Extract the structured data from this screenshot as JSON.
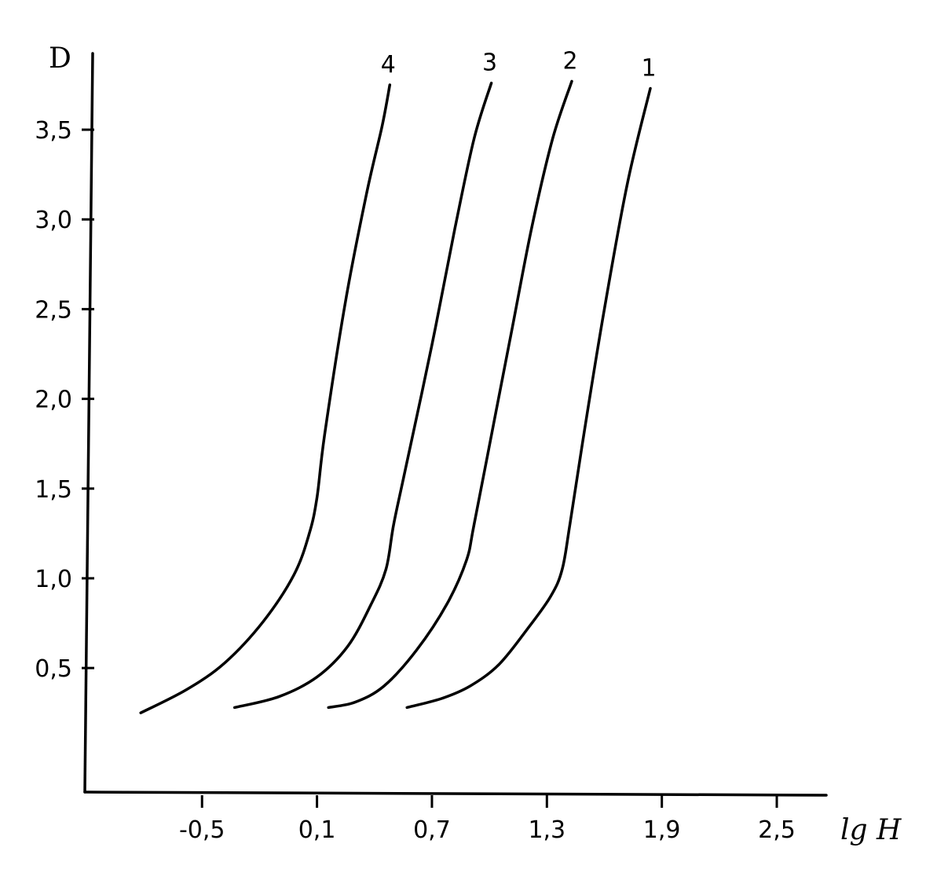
{
  "chart_data": {
    "type": "line",
    "xlabel": "lg H",
    "ylabel": "D",
    "xlim": [
      -1.12,
      2.75
    ],
    "ylim": [
      -0.2,
      3.96
    ],
    "x_ticks": [
      {
        "value": -0.5,
        "label": "-0,5"
      },
      {
        "value": 0.1,
        "label": "0,1"
      },
      {
        "value": 0.7,
        "label": "0,7"
      },
      {
        "value": 1.3,
        "label": "1,3"
      },
      {
        "value": 1.9,
        "label": "1,9"
      },
      {
        "value": 2.5,
        "label": "2,5"
      }
    ],
    "y_ticks": [
      {
        "value": 0.5,
        "label": "0,5"
      },
      {
        "value": 1.0,
        "label": "1,0"
      },
      {
        "value": 1.5,
        "label": "1,5"
      },
      {
        "value": 2.0,
        "label": "2,0"
      },
      {
        "value": 2.5,
        "label": "2,5"
      },
      {
        "value": 3.0,
        "label": "3,0"
      },
      {
        "value": 3.5,
        "label": "3,5"
      }
    ],
    "grid": false,
    "legend": "none",
    "series": [
      {
        "name": "1",
        "x": [
          0.57,
          0.75,
          0.9,
          1.05,
          1.2,
          1.32,
          1.38,
          1.42,
          1.5,
          1.6,
          1.72,
          1.84
        ],
        "y": [
          0.28,
          0.33,
          0.4,
          0.52,
          0.72,
          0.9,
          1.05,
          1.3,
          1.85,
          2.5,
          3.2,
          3.73
        ]
      },
      {
        "name": "2",
        "x": [
          0.16,
          0.3,
          0.45,
          0.62,
          0.78,
          0.88,
          0.92,
          1.02,
          1.12,
          1.22,
          1.33,
          1.43
        ],
        "y": [
          0.28,
          0.31,
          0.4,
          0.6,
          0.86,
          1.1,
          1.3,
          1.85,
          2.4,
          2.95,
          3.45,
          3.77
        ]
      },
      {
        "name": "3",
        "x": [
          -0.33,
          -0.1,
          0.1,
          0.26,
          0.38,
          0.46,
          0.5,
          0.56,
          0.7,
          0.82,
          0.92,
          1.01
        ],
        "y": [
          0.28,
          0.34,
          0.45,
          0.62,
          0.85,
          1.05,
          1.3,
          1.6,
          2.3,
          2.95,
          3.45,
          3.76
        ]
      },
      {
        "name": "4",
        "x": [
          -0.82,
          -0.58,
          -0.38,
          -0.18,
          -0.02,
          0.06,
          0.1,
          0.14,
          0.25,
          0.36,
          0.44,
          0.48
        ],
        "y": [
          0.25,
          0.38,
          0.53,
          0.76,
          1.02,
          1.25,
          1.45,
          1.8,
          2.55,
          3.15,
          3.52,
          3.75
        ]
      }
    ]
  }
}
